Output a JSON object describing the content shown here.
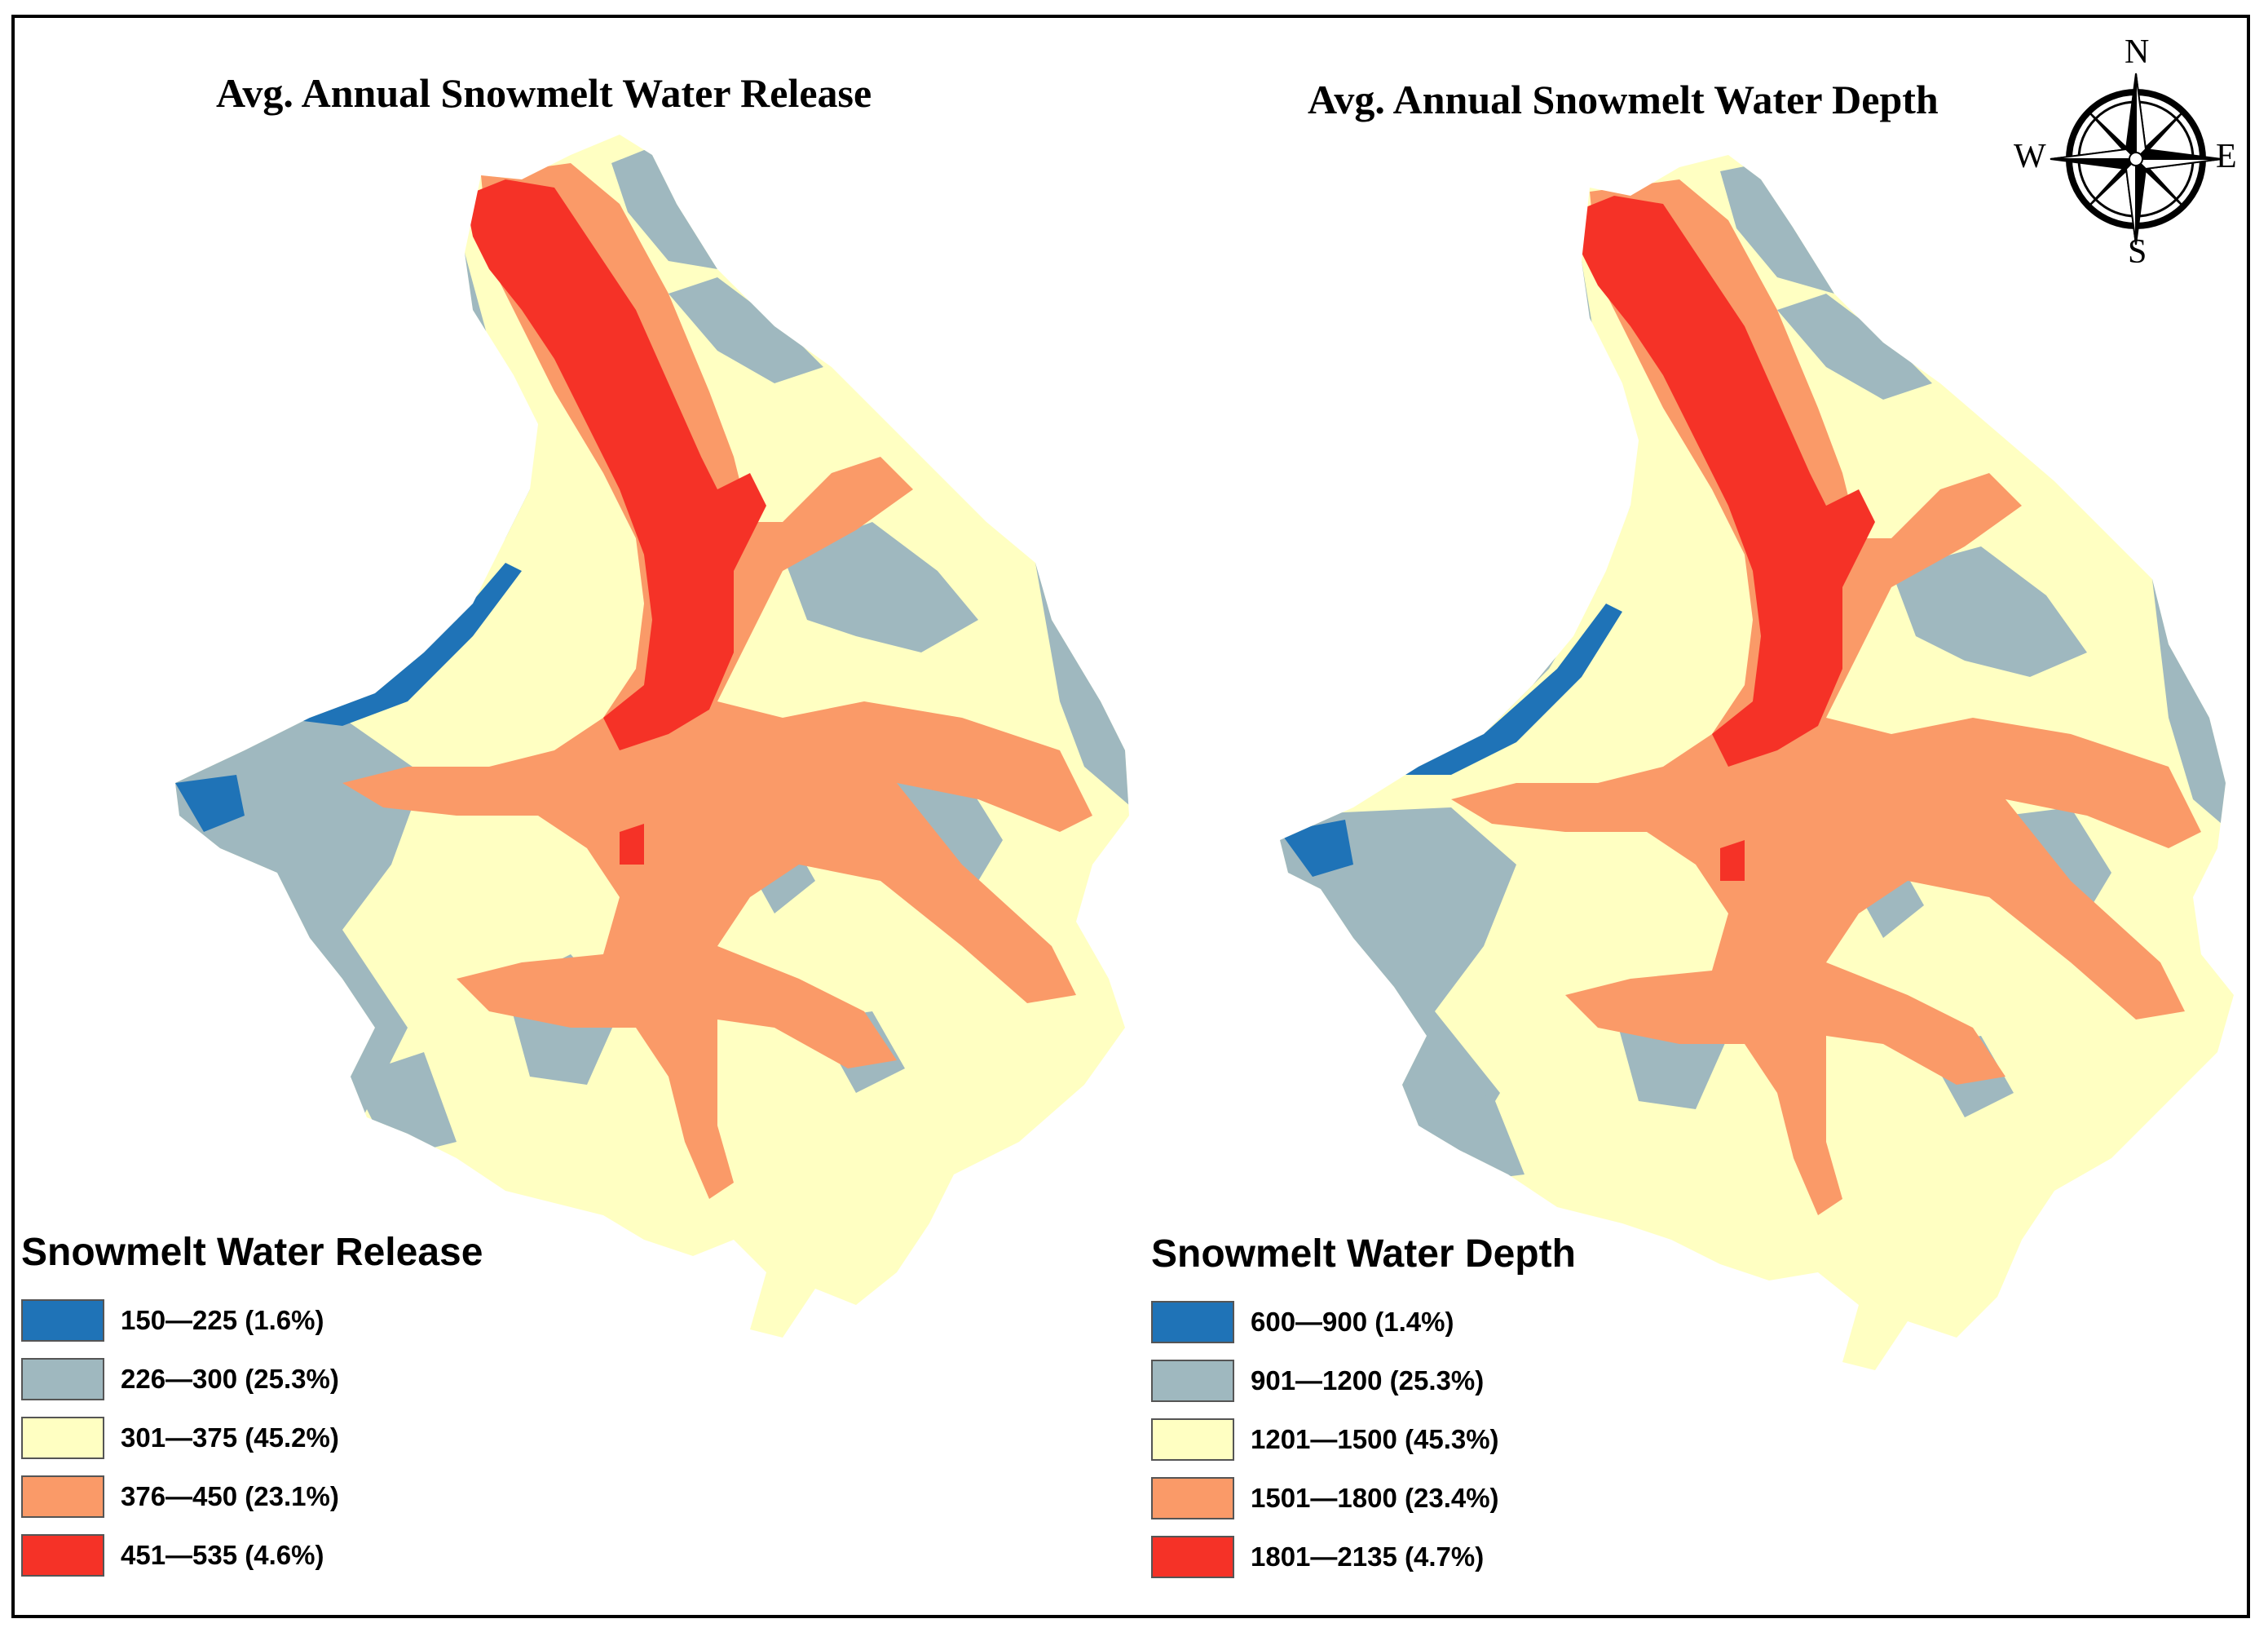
{
  "maps": {
    "left": {
      "title": "Avg. Annual Snowmelt Water Release",
      "legend_title": "Snowmelt Water Release",
      "classes": [
        {
          "label": "150—225 (1.6%)",
          "color": "#1f73b7"
        },
        {
          "label": "226—300 (25.3%)",
          "color": "#9fb8bf"
        },
        {
          "label": "301—375 (45.2%)",
          "color": "#ffffc2"
        },
        {
          "label": "376—450 (23.1%)",
          "color": "#fa9a68"
        },
        {
          "label": "451—535 (4.6%)",
          "color": "#f53227"
        }
      ]
    },
    "right": {
      "title": "Avg. Annual Snowmelt Water Depth",
      "legend_title": "Snowmelt Water Depth",
      "classes": [
        {
          "label": "600—900 (1.4%)",
          "color": "#1f73b7"
        },
        {
          "label": "901—1200 (25.3%)",
          "color": "#9fb8bf"
        },
        {
          "label": "1201—1500 (45.3%)",
          "color": "#ffffc2"
        },
        {
          "label": "1501—1800 (23.4%)",
          "color": "#fa9a68"
        },
        {
          "label": "1801—2135 (4.7%)",
          "color": "#f53227"
        }
      ]
    }
  },
  "compass": {
    "n": "N",
    "s": "S",
    "e": "E",
    "w": "W"
  }
}
